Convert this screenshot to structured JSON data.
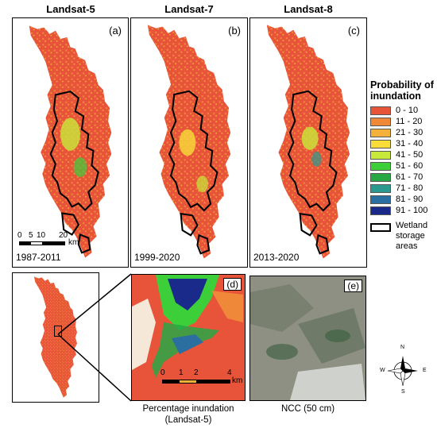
{
  "headers": [
    "Landsat-5",
    "Landsat-7",
    "Landsat-8"
  ],
  "panels": [
    {
      "label": "(a)",
      "period": "1987-2011"
    },
    {
      "label": "(b)",
      "period": "1999-2020"
    },
    {
      "label": "(c)",
      "period": "2013-2020"
    }
  ],
  "scalebar": {
    "ticks": [
      "0",
      "5",
      "10",
      "20"
    ],
    "unit": "km"
  },
  "legend": {
    "title": "Probability of inundation",
    "classes": [
      {
        "range": "0 - 10",
        "color": "#e8543a"
      },
      {
        "range": "11 - 20",
        "color": "#f0883a"
      },
      {
        "range": "21 - 30",
        "color": "#f5b23a"
      },
      {
        "range": "31 - 40",
        "color": "#f7dc3a"
      },
      {
        "range": "41 - 50",
        "color": "#c8e83a"
      },
      {
        "range": "51 - 60",
        "color": "#3ccf3a"
      },
      {
        "range": "61 - 70",
        "color": "#27a845"
      },
      {
        "range": "71 - 80",
        "color": "#2a9a8e"
      },
      {
        "range": "81 - 90",
        "color": "#2a6fa0"
      },
      {
        "range": "91 - 100",
        "color": "#1a2a8a"
      }
    ],
    "outline_label": "Wetland storage areas"
  },
  "bottom": {
    "panel_d": {
      "label": "(d)",
      "ticks": [
        "0",
        "1",
        "2",
        "4"
      ],
      "unit": "km",
      "caption": "Percentage inundation (Landsat-5)"
    },
    "panel_e": {
      "label": "(e)",
      "caption": "NCC (50 cm)"
    }
  },
  "north_arrow": {
    "n": "N",
    "s": "S",
    "e": "E",
    "w": "W"
  }
}
